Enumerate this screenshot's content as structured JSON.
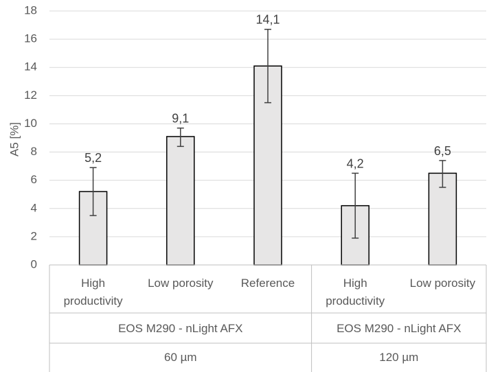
{
  "chart_data": {
    "type": "bar",
    "title": "",
    "ylabel": "A5 [%]",
    "xlabel": "",
    "ylim": [
      0,
      18
    ],
    "yticks": [
      0,
      2,
      4,
      6,
      8,
      10,
      12,
      14,
      16,
      18
    ],
    "grid": true,
    "bar_color": "#e7e6e6",
    "bar_edge_color": "#000000",
    "grid_color": "#d9d9d9",
    "categories": [
      {
        "label_lines": [
          "High",
          "productivity"
        ]
      },
      {
        "label_lines": [
          "Low porosity"
        ]
      },
      {
        "label_lines": [
          "Reference"
        ]
      },
      {
        "label_lines": [
          "High",
          "productivity"
        ]
      },
      {
        "label_lines": [
          "Low porosity"
        ]
      }
    ],
    "values": [
      5.2,
      9.1,
      14.1,
      4.2,
      6.5
    ],
    "data_labels": [
      "5,2",
      "9,1",
      "14,1",
      "4,2",
      "6,5"
    ],
    "error_low": [
      3.5,
      8.4,
      11.5,
      1.9,
      5.5
    ],
    "error_high": [
      6.9,
      9.7,
      16.7,
      6.5,
      7.4
    ],
    "groups": [
      {
        "machine": "EOS M290 - nLight AFX",
        "layer": "60 µm",
        "span": [
          0,
          2
        ]
      },
      {
        "machine": "EOS M290 - nLight AFX",
        "layer": "120 µm",
        "span": [
          3,
          4
        ]
      }
    ]
  }
}
